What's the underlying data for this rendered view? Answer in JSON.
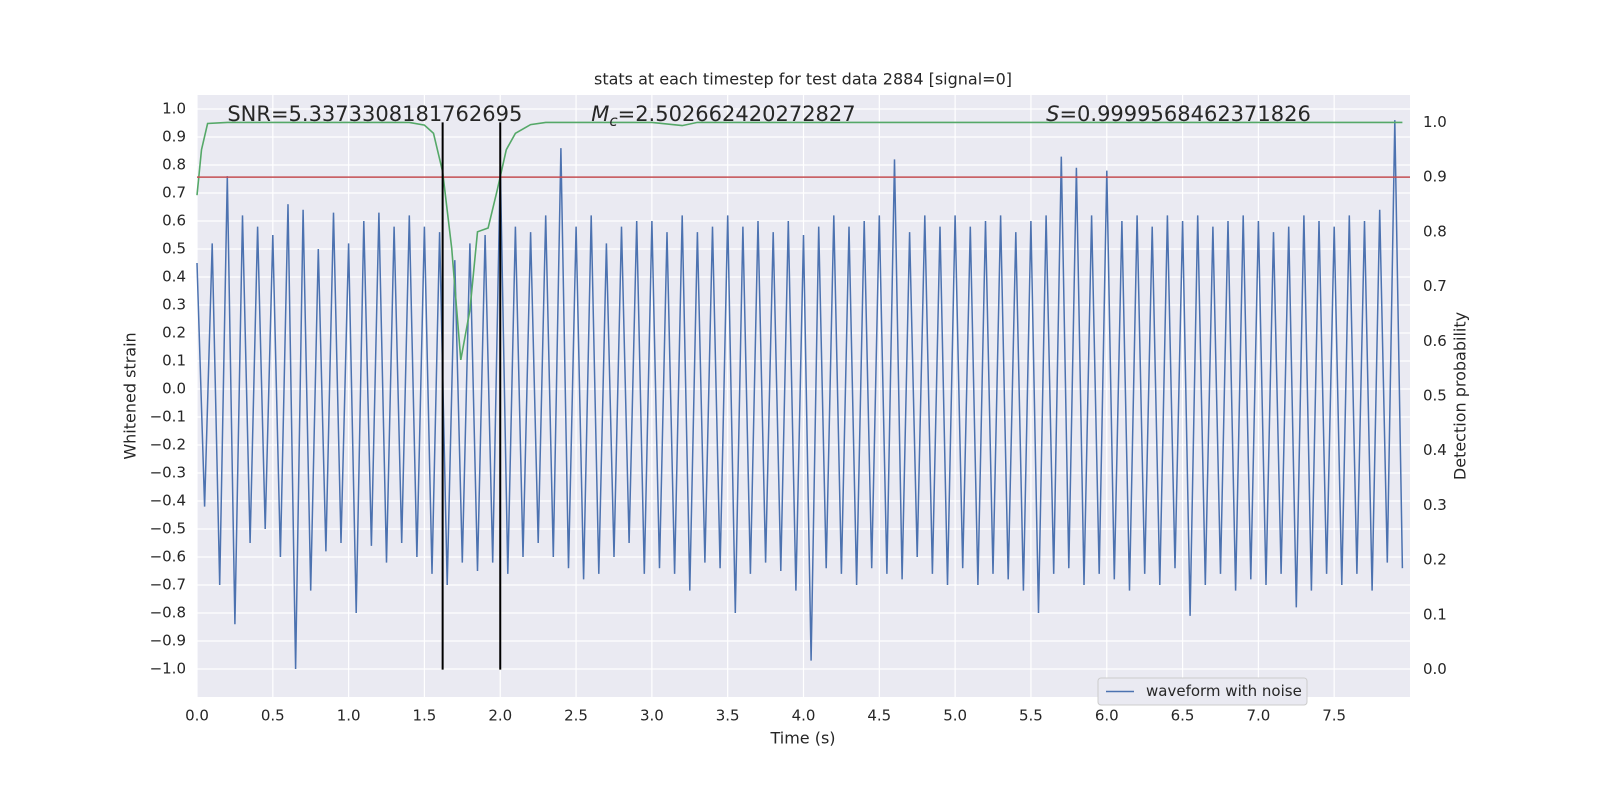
{
  "chart_data": {
    "type": "line",
    "title": "stats at each timestep for test data 2884 [signal=0]",
    "xlabel": "Time (s)",
    "ylabel": "Whitened strain",
    "y2label": "Detection probability",
    "xlim": [
      0,
      8
    ],
    "ylim": [
      -1.1,
      1.05
    ],
    "y2lim": [
      -0.05,
      1.05
    ],
    "xticks": [
      {
        "value": 0,
        "label": "0.0"
      },
      0.5,
      {
        "value": 1,
        "label": "1.0"
      },
      1.5,
      {
        "value": 2,
        "label": "2.0"
      },
      2.5,
      {
        "value": 3,
        "label": "3.0"
      },
      3.5,
      {
        "value": 4,
        "label": "4.0"
      },
      4.5,
      {
        "value": 5,
        "label": "5.0"
      },
      5.5,
      {
        "value": 6,
        "label": "6.0"
      },
      6.5,
      {
        "value": 7,
        "label": "7.0"
      },
      7.5
    ],
    "yticks": [
      {
        "value": -1,
        "label": "−1.0"
      },
      {
        "value": -0.9,
        "label": "−0.9"
      },
      {
        "value": -0.8,
        "label": "−0.8"
      },
      {
        "value": -0.7,
        "label": "−0.7"
      },
      {
        "value": -0.6,
        "label": "−0.6"
      },
      {
        "value": -0.5,
        "label": "−0.5"
      },
      {
        "value": -0.4,
        "label": "−0.4"
      },
      {
        "value": -0.3,
        "label": "−0.3"
      },
      {
        "value": -0.2,
        "label": "−0.2"
      },
      {
        "value": -0.1,
        "label": "−0.1"
      },
      {
        "value": 0,
        "label": "0.0"
      },
      0.1,
      0.2,
      0.3,
      0.4,
      0.5,
      0.6,
      0.7,
      0.8,
      0.9,
      {
        "value": 1,
        "label": "1.0"
      }
    ],
    "y2ticks": [
      {
        "value": 0,
        "label": "0.0"
      },
      0.1,
      0.2,
      0.3,
      0.4,
      0.5,
      0.6,
      0.7,
      0.8,
      0.9,
      {
        "value": 1,
        "label": "1.0"
      }
    ],
    "grid": true,
    "legend": "lower right",
    "series": [
      {
        "name": "waveform with noise",
        "color": "#4c72b0",
        "x": [
          0,
          0.05,
          0.1,
          0.15,
          0.2,
          0.25,
          0.3,
          0.35,
          0.4,
          0.45,
          0.5,
          0.55,
          0.6,
          0.65,
          0.7,
          0.75,
          0.8,
          0.85,
          0.9,
          0.95,
          1,
          1.05,
          1.1,
          1.15,
          1.2,
          1.25,
          1.3,
          1.35,
          1.4,
          1.45,
          1.5,
          1.55,
          1.6,
          1.65,
          1.7,
          1.75,
          1.8,
          1.85,
          1.9,
          1.95,
          2,
          2.05,
          2.1,
          2.15,
          2.2,
          2.25,
          2.3,
          2.35,
          2.4,
          2.45,
          2.5,
          2.55,
          2.6,
          2.65,
          2.7,
          2.75,
          2.8,
          2.85,
          2.9,
          2.95,
          3,
          3.05,
          3.1,
          3.15,
          3.2,
          3.25,
          3.3,
          3.35,
          3.4,
          3.45,
          3.5,
          3.55,
          3.6,
          3.65,
          3.7,
          3.75,
          3.8,
          3.85,
          3.9,
          3.95,
          4,
          4.05,
          4.1,
          4.15,
          4.2,
          4.25,
          4.3,
          4.35,
          4.4,
          4.45,
          4.5,
          4.55,
          4.6,
          4.65,
          4.7,
          4.75,
          4.8,
          4.85,
          4.9,
          4.95,
          5,
          5.05,
          5.1,
          5.15,
          5.2,
          5.25,
          5.3,
          5.35,
          5.4,
          5.45,
          5.5,
          5.55,
          5.6,
          5.65,
          5.7,
          5.75,
          5.8,
          5.85,
          5.9,
          5.95,
          6,
          6.05,
          6.1,
          6.15,
          6.2,
          6.25,
          6.3,
          6.35,
          6.4,
          6.45,
          6.5,
          6.55,
          6.6,
          6.65,
          6.7,
          6.75,
          6.8,
          6.85,
          6.9,
          6.95,
          7,
          7.05,
          7.1,
          7.15,
          7.2,
          7.25,
          7.3,
          7.35,
          7.4,
          7.45,
          7.5,
          7.55,
          7.6,
          7.65,
          7.7,
          7.75,
          7.8,
          7.85,
          7.9,
          7.95
        ],
        "values": [
          0.45,
          -0.42,
          0.52,
          -0.7,
          0.76,
          -0.84,
          0.62,
          -0.55,
          0.58,
          -0.5,
          0.55,
          -0.6,
          0.66,
          -1.0,
          0.64,
          -0.72,
          0.5,
          -0.58,
          0.63,
          -0.55,
          0.52,
          -0.8,
          0.6,
          -0.56,
          0.63,
          -0.62,
          0.58,
          -0.55,
          0.62,
          -0.6,
          0.58,
          -0.66,
          0.56,
          -0.7,
          0.46,
          -0.62,
          0.52,
          -0.65,
          0.55,
          -0.62,
          0.8,
          -0.66,
          0.58,
          -0.6,
          0.56,
          -0.55,
          0.62,
          -0.6,
          0.86,
          -0.64,
          0.58,
          -0.68,
          0.62,
          -0.66,
          0.52,
          -0.6,
          0.58,
          -0.55,
          0.6,
          -0.66,
          0.6,
          -0.64,
          0.56,
          -0.66,
          0.62,
          -0.72,
          0.56,
          -0.62,
          0.58,
          -0.64,
          0.62,
          -0.8,
          0.58,
          -0.66,
          0.6,
          -0.62,
          0.56,
          -0.65,
          0.6,
          -0.72,
          0.55,
          -0.97,
          0.58,
          -0.64,
          0.62,
          -0.66,
          0.58,
          -0.7,
          0.6,
          -0.64,
          0.62,
          -0.66,
          0.82,
          -0.68,
          0.56,
          -0.6,
          0.62,
          -0.66,
          0.58,
          -0.7,
          0.62,
          -0.64,
          0.58,
          -0.7,
          0.6,
          -0.66,
          0.62,
          -0.68,
          0.56,
          -0.72,
          0.6,
          -0.8,
          0.62,
          -0.66,
          0.83,
          -0.64,
          0.79,
          -0.7,
          0.62,
          -0.66,
          0.78,
          -0.68,
          0.6,
          -0.72,
          0.62,
          -0.66,
          0.58,
          -0.7,
          0.62,
          -0.64,
          0.6,
          -0.81,
          0.62,
          -0.7,
          0.58,
          -0.66,
          0.6,
          -0.72,
          0.62,
          -0.68,
          0.6,
          -0.7,
          0.56,
          -0.66,
          0.58,
          -0.78,
          0.62,
          -0.72,
          0.6,
          -0.66,
          0.58,
          -0.7,
          0.62,
          -0.66,
          0.6,
          -0.72,
          0.64,
          -0.62,
          0.96,
          -0.64
        ]
      },
      {
        "color": "#55a868",
        "axis": "y2",
        "x": [
          0,
          0.03,
          0.07,
          0.2,
          1.4,
          1.5,
          1.56,
          1.62,
          1.68,
          1.74,
          1.8,
          1.85,
          1.92,
          1.98,
          2.04,
          2.1,
          2.2,
          2.3,
          3.0,
          3.2,
          3.3,
          3.5,
          7.95
        ],
        "values": [
          0.867,
          0.95,
          0.998,
          1.0,
          1.0,
          0.995,
          0.98,
          0.91,
          0.77,
          0.566,
          0.657,
          0.8,
          0.807,
          0.876,
          0.95,
          0.98,
          0.996,
          1.0,
          1.0,
          0.994,
          1.0,
          1.0,
          1.0
        ]
      }
    ],
    "threshold": {
      "value": 0.9,
      "axis": "y2",
      "color": "#c44e52"
    },
    "vlines": {
      "x": [
        1.62,
        2.0
      ],
      "from": 0,
      "to": 1,
      "axis": "y2",
      "color": "#000000"
    },
    "annotations": [
      {
        "text": "SNR=5.3373308181762695",
        "x": 0.2
      },
      {
        "symbol": "M",
        "subscript": "c",
        "text": "=2.502662420272827",
        "x": 2.6
      },
      {
        "symbol": "S",
        "text": "=0.9999568462371826",
        "x": 5.6
      }
    ]
  }
}
